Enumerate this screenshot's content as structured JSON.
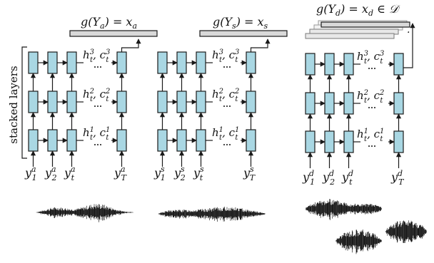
{
  "side_label": "stacked layers",
  "panels": [
    {
      "id": "a",
      "output_label": "g(Y_a) = x_a",
      "inputs": [
        "y_1^a",
        "y_2^a",
        "y_t^a",
        "y_T^a"
      ],
      "states": [
        "h_t^3, c_t^3",
        "h_t^2, c_t^2",
        "h_t^1, c_t^1"
      ]
    },
    {
      "id": "s",
      "output_label": "g(Y_s) = x_s",
      "inputs": [
        "y_1^s",
        "y_2^s",
        "y_t^s",
        "y_T^s"
      ],
      "states": [
        "h_t^3, c_t^3",
        "h_t^2, c_t^2",
        "h_t^1, c_t^1"
      ]
    },
    {
      "id": "d",
      "output_label": "g(Y_d) = x_d ∈ 𝒟",
      "inputs": [
        "y_1^d",
        "y_2^d",
        "y_t^d",
        "y_T^d"
      ],
      "states": [
        "h_t^3, c_t^3",
        "h_t^2, c_t^2",
        "h_t^1, c_t^1"
      ]
    }
  ],
  "text": {
    "p0": {
      "out_main": "g(Y",
      "out_sub": "a",
      "out_tail": ") = x",
      "out_tail_sub": "a",
      "in1": "y",
      "in1_sup": "a",
      "in1_sub": "1",
      "in2": "y",
      "in2_sup": "a",
      "in2_sub": "2",
      "in3": "y",
      "in3_sup": "a",
      "in3_sub": "t",
      "in4": "y",
      "in4_sup": "a",
      "in4_sub": "T",
      "s3": "h",
      "s3_sup": "3",
      "s3_sub": "t",
      "s3_mid": ", c",
      "s3_sup2": "3",
      "s3_sub2": "t",
      "s2": "h",
      "s2_sup": "2",
      "s2_sub": "t",
      "s2_mid": ", c",
      "s2_sup2": "2",
      "s2_sub2": "t",
      "s1": "h",
      "s1_sup": "1",
      "s1_sub": "t",
      "s1_mid": ", c",
      "s1_sup2": "1",
      "s1_sub2": "t"
    },
    "p1": {
      "out_main": "g(Y",
      "out_sub": "s",
      "out_tail": ") = x",
      "out_tail_sub": "s",
      "in1": "y",
      "in1_sup": "s",
      "in1_sub": "1",
      "in2": "y",
      "in2_sup": "s",
      "in2_sub": "2",
      "in3": "y",
      "in3_sup": "s",
      "in3_sub": "t",
      "in4": "y",
      "in4_sup": "s",
      "in4_sub": "T",
      "s3": "h",
      "s3_sup": "3",
      "s3_sub": "t",
      "s3_mid": ", c",
      "s3_sup2": "3",
      "s3_sub2": "t",
      "s2": "h",
      "s2_sup": "2",
      "s2_sub": "t",
      "s2_mid": ", c",
      "s2_sup2": "2",
      "s2_sub2": "t",
      "s1": "h",
      "s1_sup": "1",
      "s1_sub": "t",
      "s1_mid": ", c",
      "s1_sup2": "1",
      "s1_sub2": "t"
    },
    "p2": {
      "out_main": "g(Y",
      "out_sub": "d",
      "out_tail": ") = x",
      "out_tail_sub": "d",
      "out_set": " ∈ 𝒟",
      "in1": "y",
      "in1_sup": "d",
      "in1_sub": "1",
      "in2": "y",
      "in2_sup": "d",
      "in2_sub": "2",
      "in3": "y",
      "in3_sup": "d",
      "in3_sub": "t",
      "in4": "y",
      "in4_sup": "d",
      "in4_sub": "T",
      "s3": "h",
      "s3_sup": "3",
      "s3_sub": "t",
      "s3_mid": ", c",
      "s3_sup2": "3",
      "s3_sub2": "t",
      "s2": "h",
      "s2_sup": "2",
      "s2_sub": "t",
      "s2_mid": ", c",
      "s2_sup2": "2",
      "s2_sub2": "t",
      "s1": "h",
      "s1_sup": "1",
      "s1_sub": "t",
      "s1_mid": ", c",
      "s1_sup2": "1",
      "s1_sub2": "t"
    },
    "dot": "."
  }
}
